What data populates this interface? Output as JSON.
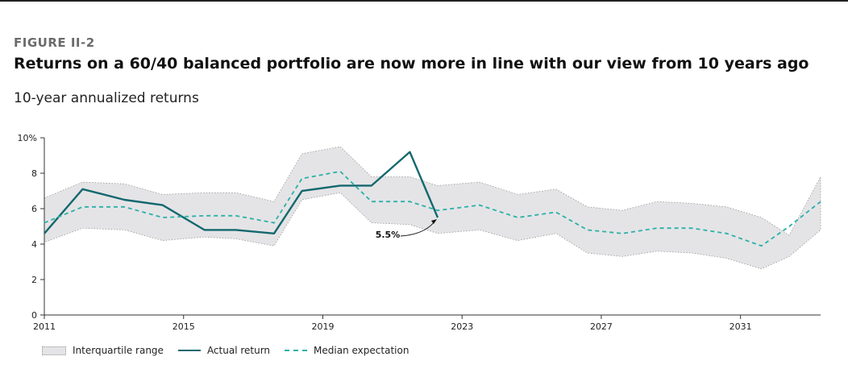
{
  "header": {
    "figure_label": "FIGURE II-2",
    "title": "Returns on a 60/40 balanced portfolio are now more in line with our view from 10 years ago",
    "subtitle": "10-year annualized returns"
  },
  "legend": {
    "range_label": "Interquartile range",
    "actual_label": "Actual return",
    "median_label": "Median expectation"
  },
  "colors": {
    "actual": "#14686f",
    "median": "#2bb0a8",
    "range_fill": "#e4e4e6",
    "range_border": "#999999"
  },
  "chart_data": {
    "type": "line",
    "title": "Returns on a 60/40 balanced portfolio are now more in line with our view from 10 years ago",
    "subtitle": "10-year annualized returns",
    "xlabel": "",
    "ylabel": "",
    "xlim": [
      2011,
      2033.3
    ],
    "ylim": [
      0,
      10
    ],
    "x_ticks": [
      2011,
      2015,
      2019,
      2023,
      2027,
      2031
    ],
    "y_ticks": [
      {
        "value": 0,
        "label": "0"
      },
      {
        "value": 2,
        "label": "2"
      },
      {
        "value": 4,
        "label": "4"
      },
      {
        "value": 6,
        "label": "6"
      },
      {
        "value": 8,
        "label": "8"
      },
      {
        "value": 10,
        "label": "10%"
      }
    ],
    "series": [
      {
        "name": "Interquartile range",
        "style": "band",
        "x": [
          2011,
          2012.1,
          2013.3,
          2014.4,
          2015.6,
          2016.5,
          2017.6,
          2018.4,
          2019.5,
          2020.4,
          2021.5,
          2022.3,
          2023.5,
          2024.6,
          2025.7,
          2026.6,
          2027.6,
          2028.6,
          2029.6,
          2030.6,
          2031.6,
          2032.4,
          2033.3
        ],
        "upper": [
          6.6,
          7.5,
          7.4,
          6.8,
          6.9,
          6.9,
          6.4,
          9.1,
          9.5,
          7.8,
          7.8,
          7.3,
          7.5,
          6.8,
          7.1,
          6.1,
          5.9,
          6.4,
          6.3,
          6.1,
          5.5,
          4.5,
          7.8
        ],
        "lower": [
          4.1,
          4.9,
          4.8,
          4.2,
          4.4,
          4.3,
          3.9,
          6.5,
          6.9,
          5.2,
          5.1,
          4.6,
          4.8,
          4.2,
          4.6,
          3.5,
          3.3,
          3.6,
          3.5,
          3.2,
          2.6,
          3.3,
          4.8
        ]
      },
      {
        "name": "Actual return",
        "style": "solid",
        "x": [
          2011,
          2012.1,
          2013.3,
          2014.4,
          2015.6,
          2016.5,
          2017.6,
          2018.4,
          2019.5,
          2020.4,
          2021.5,
          2022.3
        ],
        "values": [
          4.6,
          7.1,
          6.5,
          6.2,
          4.8,
          4.8,
          4.6,
          7.0,
          7.3,
          7.3,
          9.2,
          5.5
        ]
      },
      {
        "name": "Median expectation",
        "style": "dashed",
        "x": [
          2011,
          2012.1,
          2013.3,
          2014.4,
          2015.6,
          2016.5,
          2017.6,
          2018.4,
          2019.5,
          2020.4,
          2021.5,
          2022.3,
          2023.5,
          2024.6,
          2025.7,
          2026.6,
          2027.6,
          2028.6,
          2029.6,
          2030.6,
          2031.6,
          2032.4,
          2033.3
        ],
        "values": [
          5.2,
          6.1,
          6.1,
          5.5,
          5.6,
          5.6,
          5.2,
          7.7,
          8.1,
          6.4,
          6.4,
          5.9,
          6.2,
          5.5,
          5.8,
          4.8,
          4.6,
          4.9,
          4.9,
          4.6,
          3.9,
          5.0,
          6.4
        ]
      }
    ],
    "annotations": [
      {
        "text": "5.5%",
        "x": 2022.3,
        "y": 5.5
      }
    ]
  }
}
